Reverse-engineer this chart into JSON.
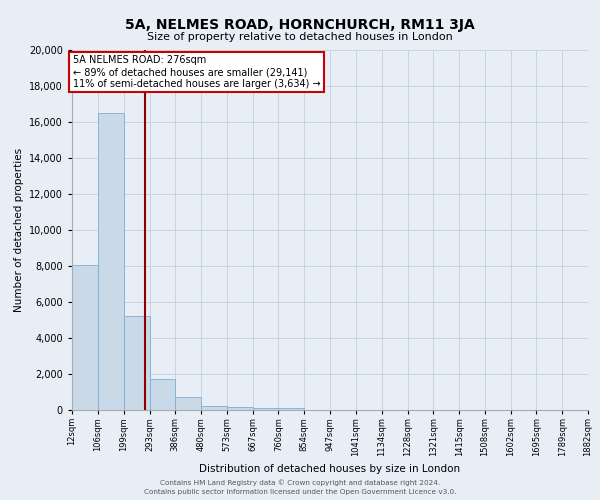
{
  "title_line1": "5A, NELMES ROAD, HORNCHURCH, RM11 3JA",
  "title_line2": "Size of property relative to detached houses in London",
  "xlabel": "Distribution of detached houses by size in London",
  "ylabel": "Number of detached properties",
  "bar_color": "#c9d9e8",
  "bar_edge_color": "#7bafd4",
  "background_color": "#e8eef5",
  "bin_edges": [
    12,
    106,
    199,
    293,
    386,
    480,
    573,
    667,
    760,
    854,
    947,
    1041,
    1134,
    1228,
    1321,
    1415,
    1508,
    1602,
    1695,
    1789,
    1882
  ],
  "bar_heights": [
    8050,
    16500,
    5200,
    1700,
    750,
    250,
    150,
    100,
    100,
    0,
    0,
    0,
    0,
    0,
    0,
    0,
    0,
    0,
    0,
    0
  ],
  "xticklabels": [
    "12sqm",
    "106sqm",
    "199sqm",
    "293sqm",
    "386sqm",
    "480sqm",
    "573sqm",
    "667sqm",
    "760sqm",
    "854sqm",
    "947sqm",
    "1041sqm",
    "1134sqm",
    "1228sqm",
    "1321sqm",
    "1415sqm",
    "1508sqm",
    "1602sqm",
    "1695sqm",
    "1789sqm",
    "1882sqm"
  ],
  "ylim": [
    0,
    20000
  ],
  "yticks": [
    0,
    2000,
    4000,
    6000,
    8000,
    10000,
    12000,
    14000,
    16000,
    18000,
    20000
  ],
  "red_line_x": 276,
  "red_line_color": "#8b0000",
  "annotation_title": "5A NELMES ROAD: 276sqm",
  "annotation_line1": "← 89% of detached houses are smaller (29,141)",
  "annotation_line2": "11% of semi-detached houses are larger (3,634) →",
  "annotation_box_color": "#ffffff",
  "annotation_box_edge": "#cc0000",
  "footer_line1": "Contains HM Land Registry data © Crown copyright and database right 2024.",
  "footer_line2": "Contains public sector information licensed under the Open Government Licence v3.0.",
  "grid_color": "#c8d4e0"
}
